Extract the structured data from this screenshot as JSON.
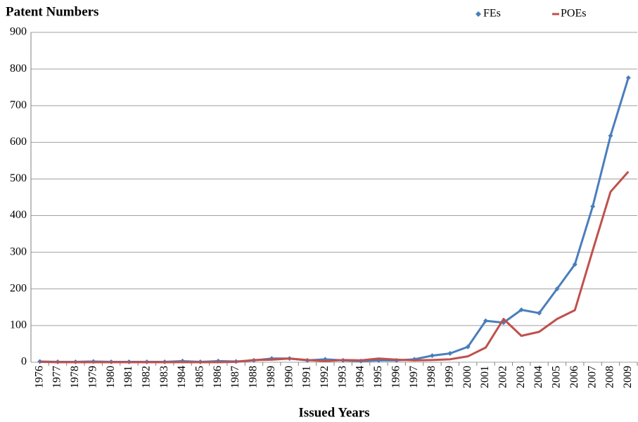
{
  "chart_data": {
    "type": "line",
    "title": "Patent Numbers",
    "xlabel": "Issued Years",
    "categories": [
      "1976",
      "1977",
      "1978",
      "1979",
      "1980",
      "1981",
      "1982",
      "1983",
      "1984",
      "1985",
      "1986",
      "1987",
      "1988",
      "1989",
      "1990",
      "1991",
      "1992",
      "1993",
      "1994",
      "1995",
      "1996",
      "1997",
      "1998",
      "1999",
      "2000",
      "2001",
      "2002",
      "2003",
      "2004",
      "2005",
      "2006",
      "2007",
      "2008",
      "2009"
    ],
    "series": [
      {
        "name": "FEs",
        "color": "#4a7ebb",
        "marker": "diamond",
        "values": [
          2,
          1,
          1,
          2,
          1,
          1,
          1,
          1,
          3,
          1,
          3,
          2,
          5,
          10,
          10,
          5,
          8,
          5,
          3,
          5,
          5,
          8,
          18,
          24,
          42,
          113,
          108,
          143,
          134,
          200,
          267,
          425,
          618,
          776
        ]
      },
      {
        "name": "POEs",
        "color": "#c0504d",
        "marker": "none",
        "values": [
          1,
          0,
          0,
          0,
          0,
          0,
          0,
          0,
          0,
          0,
          0,
          1,
          6,
          7,
          10,
          6,
          3,
          6,
          5,
          10,
          7,
          5,
          6,
          8,
          16,
          40,
          118,
          72,
          83,
          118,
          142,
          305,
          465,
          520
        ]
      }
    ],
    "ylim": [
      0,
      900
    ],
    "yticks": [
      0,
      100,
      200,
      300,
      400,
      500,
      600,
      700,
      800,
      900
    ],
    "grid": true,
    "legend": "top-right"
  }
}
